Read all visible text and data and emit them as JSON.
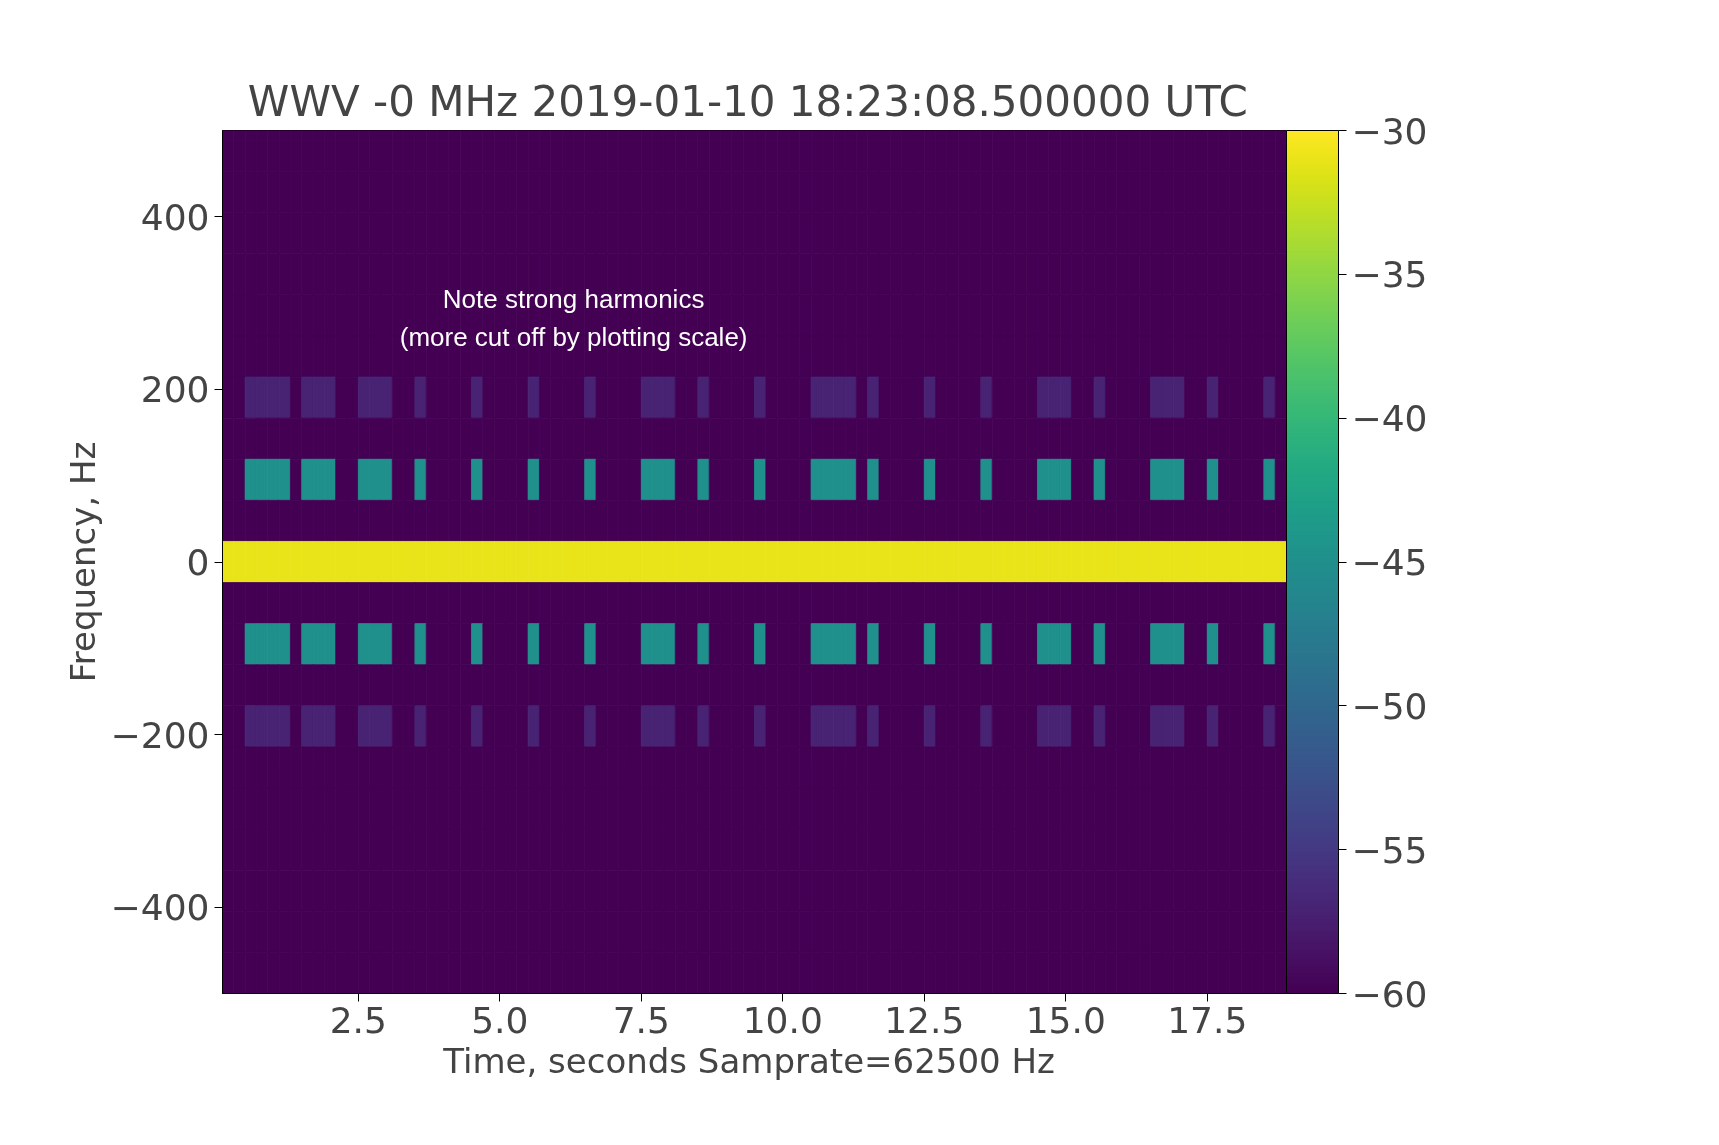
{
  "chart_data": {
    "type": "heatmap",
    "title": "WWV -0 MHz  2019-01-10 18:23:08.500000 UTC",
    "xlabel": "Time, seconds  Samprate=62500 Hz",
    "ylabel": "Frequency, Hz",
    "annotations": [
      "Note strong harmonics",
      "(more cut off by plotting scale)"
    ],
    "xlim": [
      0.1,
      18.9
    ],
    "ylim": [
      -500,
      500
    ],
    "xticks": [
      2.5,
      {
        "value": 5,
        "label": "5.0"
      },
      7.5,
      {
        "value": 10,
        "label": "10.0"
      },
      12.5,
      {
        "value": 15,
        "label": "15.0"
      },
      17.5
    ],
    "yticks": [
      {
        "value": -400,
        "label": "−400"
      },
      {
        "value": -200,
        "label": "−200"
      },
      0,
      200,
      400
    ],
    "clim": [
      -60,
      -30
    ],
    "cticks": [
      {
        "value": -60,
        "label": "−60"
      },
      {
        "value": -55,
        "label": "−55"
      },
      {
        "value": -50,
        "label": "−50"
      },
      {
        "value": -45,
        "label": "−45"
      },
      {
        "value": -40,
        "label": "−40"
      },
      {
        "value": -35,
        "label": "−35"
      },
      {
        "value": -30,
        "label": "−30"
      }
    ],
    "cells": [
      [
        -60,
        -60,
        -60,
        -60,
        -60,
        -60,
        -60,
        -60,
        -60,
        -60,
        -60,
        -60,
        -60,
        -60,
        -60,
        -60,
        -60,
        -60,
        -60,
        -60,
        -60,
        -60,
        -60,
        -60,
        -60,
        -60,
        -60,
        -60,
        -60,
        -60,
        -60,
        -60,
        -60,
        -60,
        -60,
        -60,
        -60,
        -60,
        -60,
        -60,
        -60,
        -60,
        -60,
        -60,
        -60,
        -60,
        -60,
        -60,
        -60,
        -60,
        -60,
        -60,
        -60,
        -60,
        -60,
        -60,
        -60,
        -60,
        -60,
        -60,
        -60,
        -60,
        -60,
        -60,
        -60,
        -60,
        -60,
        -60,
        -60,
        -60,
        -60,
        -60,
        -60,
        -60,
        -60,
        -60,
        -60,
        -60,
        -60,
        -60,
        -60,
        -60,
        -60,
        -60,
        -60,
        -60,
        -60,
        -60,
        -60,
        -60,
        -60,
        -60,
        -60,
        -60
      ],
      [
        -60,
        -60,
        -60,
        -60,
        -60,
        -60,
        -60,
        -60,
        -60,
        -60,
        -60,
        -60,
        -60,
        -60,
        -60,
        -60,
        -60,
        -60,
        -60,
        -60,
        -60,
        -60,
        -60,
        -60,
        -60,
        -60,
        -60,
        -60,
        -60,
        -60,
        -60,
        -60,
        -60,
        -60,
        -60,
        -60,
        -60,
        -60,
        -60,
        -60,
        -60,
        -60,
        -60,
        -60,
        -60,
        -60,
        -60,
        -60,
        -60,
        -60,
        -60,
        -60,
        -60,
        -60,
        -60,
        -60,
        -60,
        -60,
        -60,
        -60,
        -60,
        -60,
        -60,
        -60,
        -60,
        -60,
        -60,
        -60,
        -60,
        -60,
        -60,
        -60,
        -60,
        -60,
        -60,
        -60,
        -60,
        -60,
        -60,
        -60,
        -60,
        -60,
        -60,
        -60,
        -60,
        -60,
        -60,
        -60,
        -60,
        -60,
        -60,
        -60,
        -60,
        -60
      ],
      [
        -60,
        -60,
        -60,
        -60,
        -60,
        -60,
        -60,
        -60,
        -60,
        -60,
        -60,
        -60,
        -60,
        -60,
        -60,
        -60,
        -60,
        -60,
        -60,
        -60,
        -60,
        -60,
        -60,
        -60,
        -60,
        -60,
        -60,
        -60,
        -60,
        -60,
        -60,
        -60,
        -60,
        -60,
        -60,
        -60,
        -60,
        -60,
        -60,
        -60,
        -60,
        -60,
        -60,
        -60,
        -60,
        -60,
        -60,
        -60,
        -60,
        -60,
        -60,
        -60,
        -60,
        -60,
        -60,
        -60,
        -60,
        -60,
        -60,
        -60,
        -60,
        -60,
        -60,
        -60,
        -60,
        -60,
        -60,
        -60,
        -60,
        -60,
        -60,
        -60,
        -60,
        -60,
        -60,
        -60,
        -60,
        -60,
        -60,
        -60,
        -60,
        -60,
        -60,
        -60,
        -60,
        -60,
        -60,
        -60,
        -60,
        -60,
        -60,
        -60,
        -60,
        -60
      ],
      [
        -60,
        -60,
        -60,
        -60,
        -60,
        -60,
        -60,
        -60,
        -60,
        -60,
        -60,
        -60,
        -60,
        -60,
        -60,
        -60,
        -60,
        -60,
        -60,
        -60,
        -60,
        -60,
        -60,
        -60,
        -60,
        -60,
        -60,
        -60,
        -60,
        -60,
        -60,
        -60,
        -60,
        -60,
        -60,
        -60,
        -60,
        -60,
        -60,
        -60,
        -60,
        -60,
        -60,
        -60,
        -60,
        -60,
        -60,
        -60,
        -60,
        -60,
        -60,
        -60,
        -60,
        -60,
        -60,
        -60,
        -60,
        -60,
        -60,
        -60,
        -60,
        -60,
        -60,
        -60,
        -60,
        -60,
        -60,
        -60,
        -60,
        -60,
        -60,
        -60,
        -60,
        -60,
        -60,
        -60,
        -60,
        -60,
        -60,
        -60,
        -60,
        -60,
        -60,
        -60,
        -60,
        -60,
        -60,
        -60,
        -60,
        -60,
        -60,
        -60,
        -60,
        -60
      ],
      [
        -60,
        -60,
        -60,
        -60,
        -60,
        -60,
        -60,
        -60,
        -60,
        -60,
        -60,
        -60,
        -60,
        -60,
        -60,
        -60,
        -60,
        -60,
        -60,
        -60,
        -60,
        -60,
        -60,
        -60,
        -60,
        -60,
        -60,
        -60,
        -60,
        -60,
        -60,
        -60,
        -60,
        -60,
        -60,
        -60,
        -60,
        -60,
        -60,
        -60,
        -60,
        -60,
        -60,
        -60,
        -60,
        -60,
        -60,
        -60,
        -60,
        -60,
        -60,
        -60,
        -60,
        -60,
        -60,
        -60,
        -60,
        -60,
        -60,
        -60,
        -60,
        -60,
        -60,
        -60,
        -60,
        -60,
        -60,
        -60,
        -60,
        -60,
        -60,
        -60,
        -60,
        -60,
        -60,
        -60,
        -60,
        -60,
        -60,
        -60,
        -60,
        -60,
        -60,
        -60,
        -60,
        -60,
        -60,
        -60,
        -60,
        -60,
        -60,
        -60,
        -60,
        -60
      ],
      [
        -60,
        -60,
        -60,
        -60,
        -60,
        -60,
        -60,
        -60,
        -60,
        -60,
        -60,
        -60,
        -60,
        -60,
        -60,
        -60,
        -60,
        -60,
        -60,
        -60,
        -60,
        -60,
        -60,
        -60,
        -60,
        -60,
        -60,
        -60,
        -60,
        -60,
        -60,
        -60,
        -60,
        -60,
        -60,
        -60,
        -60,
        -60,
        -60,
        -60,
        -60,
        -60,
        -60,
        -60,
        -60,
        -60,
        -60,
        -60,
        -60,
        -60,
        -60,
        -60,
        -60,
        -60,
        -60,
        -60,
        -60,
        -60,
        -60,
        -60,
        -60,
        -60,
        -60,
        -60,
        -60,
        -60,
        -60,
        -60,
        -60,
        -60,
        -60,
        -60,
        -60,
        -60,
        -60,
        -60,
        -60,
        -60,
        -60,
        -60,
        -60,
        -60,
        -60,
        -60,
        -60,
        -60,
        -60,
        -60,
        -60,
        -60,
        -60,
        -60,
        -60,
        -60
      ],
      [
        -60,
        -60,
        -57,
        -57,
        -57,
        -57,
        -60,
        -57,
        -57,
        -57,
        -60,
        -60,
        -57,
        -57,
        -57,
        -60,
        -60,
        -57,
        -60,
        -60,
        -60,
        -60,
        -57,
        -60,
        -60,
        -60,
        -60,
        -57,
        -60,
        -60,
        -60,
        -60,
        -57,
        -60,
        -60,
        -60,
        -60,
        -57,
        -57,
        -57,
        -60,
        -60,
        -57,
        -60,
        -60,
        -60,
        -60,
        -57,
        -60,
        -60,
        -60,
        -60,
        -57,
        -57,
        -57,
        -57,
        -60,
        -57,
        -60,
        -60,
        -60,
        -60,
        -57,
        -60,
        -60,
        -60,
        -60,
        -57,
        -60,
        -60,
        -60,
        -60,
        -57,
        -57,
        -57,
        -60,
        -60,
        -57,
        -60,
        -60,
        -60,
        -60,
        -57,
        -57,
        -57,
        -60,
        -60,
        -57,
        -60,
        -60,
        -60,
        -60,
        -57,
        -60
      ],
      [
        -60,
        -60,
        -60,
        -60,
        -60,
        -60,
        -60,
        -60,
        -60,
        -60,
        -60,
        -60,
        -60,
        -60,
        -60,
        -60,
        -60,
        -60,
        -60,
        -60,
        -60,
        -60,
        -60,
        -60,
        -60,
        -60,
        -60,
        -60,
        -60,
        -60,
        -60,
        -60,
        -60,
        -60,
        -60,
        -60,
        -60,
        -60,
        -60,
        -60,
        -60,
        -60,
        -60,
        -60,
        -60,
        -60,
        -60,
        -60,
        -60,
        -60,
        -60,
        -60,
        -60,
        -60,
        -60,
        -60,
        -60,
        -60,
        -60,
        -60,
        -60,
        -60,
        -60,
        -60,
        -60,
        -60,
        -60,
        -60,
        -60,
        -60,
        -60,
        -60,
        -60,
        -60,
        -60,
        -60,
        -60,
        -60,
        -60,
        -60,
        -60,
        -60,
        -60,
        -60,
        -60,
        -60,
        -60,
        -60,
        -60,
        -60,
        -60,
        -60,
        -60,
        -60
      ],
      [
        -60,
        -60,
        -45,
        -45,
        -45,
        -45,
        -60,
        -45,
        -45,
        -45,
        -60,
        -60,
        -45,
        -45,
        -45,
        -60,
        -60,
        -45,
        -60,
        -60,
        -60,
        -60,
        -45,
        -60,
        -60,
        -60,
        -60,
        -45,
        -60,
        -60,
        -60,
        -60,
        -45,
        -60,
        -60,
        -60,
        -60,
        -45,
        -45,
        -45,
        -60,
        -60,
        -45,
        -60,
        -60,
        -60,
        -60,
        -45,
        -60,
        -60,
        -60,
        -60,
        -45,
        -45,
        -45,
        -45,
        -60,
        -45,
        -60,
        -60,
        -60,
        -60,
        -45,
        -60,
        -60,
        -60,
        -60,
        -45,
        -60,
        -60,
        -60,
        -60,
        -45,
        -45,
        -45,
        -60,
        -60,
        -45,
        -60,
        -60,
        -60,
        -60,
        -45,
        -45,
        -45,
        -60,
        -60,
        -45,
        -60,
        -60,
        -60,
        -60,
        -45,
        -60
      ],
      [
        -60,
        -60,
        -60,
        -60,
        -60,
        -60,
        -60,
        -60,
        -60,
        -60,
        -60,
        -60,
        -60,
        -60,
        -60,
        -60,
        -60,
        -60,
        -60,
        -60,
        -60,
        -60,
        -60,
        -60,
        -60,
        -60,
        -60,
        -60,
        -60,
        -60,
        -60,
        -60,
        -60,
        -60,
        -60,
        -60,
        -60,
        -60,
        -60,
        -60,
        -60,
        -60,
        -60,
        -60,
        -60,
        -60,
        -60,
        -60,
        -60,
        -60,
        -60,
        -60,
        -60,
        -60,
        -60,
        -60,
        -60,
        -60,
        -60,
        -60,
        -60,
        -60,
        -60,
        -60,
        -60,
        -60,
        -60,
        -60,
        -60,
        -60,
        -60,
        -60,
        -60,
        -60,
        -60,
        -60,
        -60,
        -60,
        -60,
        -60,
        -60,
        -60,
        -60,
        -60,
        -60,
        -60,
        -60,
        -60,
        -60,
        -60,
        -60,
        -60,
        -60,
        -60
      ],
      [
        -31,
        -31,
        -31,
        -31,
        -31,
        -31,
        -31,
        -31,
        -31,
        -31,
        -31,
        -31,
        -31,
        -31,
        -31,
        -31,
        -31,
        -31,
        -31,
        -31,
        -31,
        -31,
        -31,
        -31,
        -31,
        -31,
        -31,
        -31,
        -31,
        -31,
        -31,
        -31,
        -31,
        -31,
        -31,
        -31,
        -31,
        -31,
        -31,
        -31,
        -31,
        -31,
        -31,
        -31,
        -31,
        -31,
        -31,
        -31,
        -31,
        -31,
        -31,
        -31,
        -31,
        -31,
        -31,
        -31,
        -31,
        -31,
        -31,
        -31,
        -31,
        -31,
        -31,
        -31,
        -31,
        -31,
        -31,
        -31,
        -31,
        -31,
        -31,
        -31,
        -31,
        -31,
        -31,
        -31,
        -31,
        -31,
        -31,
        -31,
        -31,
        -31,
        -31,
        -31,
        -31,
        -31,
        -31,
        -31,
        -31,
        -31,
        -31,
        -31,
        -31,
        -31
      ],
      [
        -60,
        -60,
        -60,
        -60,
        -60,
        -60,
        -60,
        -60,
        -60,
        -60,
        -60,
        -60,
        -60,
        -60,
        -60,
        -60,
        -60,
        -60,
        -60,
        -60,
        -60,
        -60,
        -60,
        -60,
        -60,
        -60,
        -60,
        -60,
        -60,
        -60,
        -60,
        -60,
        -60,
        -60,
        -60,
        -60,
        -60,
        -60,
        -60,
        -60,
        -60,
        -60,
        -60,
        -60,
        -60,
        -60,
        -60,
        -60,
        -60,
        -60,
        -60,
        -60,
        -60,
        -60,
        -60,
        -60,
        -60,
        -60,
        -60,
        -60,
        -60,
        -60,
        -60,
        -60,
        -60,
        -60,
        -60,
        -60,
        -60,
        -60,
        -60,
        -60,
        -60,
        -60,
        -60,
        -60,
        -60,
        -60,
        -60,
        -60,
        -60,
        -60,
        -60,
        -60,
        -60,
        -60,
        -60,
        -60,
        -60,
        -60,
        -60,
        -60,
        -60,
        -60
      ],
      [
        -60,
        -60,
        -45,
        -45,
        -45,
        -45,
        -60,
        -45,
        -45,
        -45,
        -60,
        -60,
        -45,
        -45,
        -45,
        -60,
        -60,
        -45,
        -60,
        -60,
        -60,
        -60,
        -45,
        -60,
        -60,
        -60,
        -60,
        -45,
        -60,
        -60,
        -60,
        -60,
        -45,
        -60,
        -60,
        -60,
        -60,
        -45,
        -45,
        -45,
        -60,
        -60,
        -45,
        -60,
        -60,
        -60,
        -60,
        -45,
        -60,
        -60,
        -60,
        -60,
        -45,
        -45,
        -45,
        -45,
        -60,
        -45,
        -60,
        -60,
        -60,
        -60,
        -45,
        -60,
        -60,
        -60,
        -60,
        -45,
        -60,
        -60,
        -60,
        -60,
        -45,
        -45,
        -45,
        -60,
        -60,
        -45,
        -60,
        -60,
        -60,
        -60,
        -45,
        -45,
        -45,
        -60,
        -60,
        -45,
        -60,
        -60,
        -60,
        -60,
        -45,
        -60
      ],
      [
        -60,
        -60,
        -60,
        -60,
        -60,
        -60,
        -60,
        -60,
        -60,
        -60,
        -60,
        -60,
        -60,
        -60,
        -60,
        -60,
        -60,
        -60,
        -60,
        -60,
        -60,
        -60,
        -60,
        -60,
        -60,
        -60,
        -60,
        -60,
        -60,
        -60,
        -60,
        -60,
        -60,
        -60,
        -60,
        -60,
        -60,
        -60,
        -60,
        -60,
        -60,
        -60,
        -60,
        -60,
        -60,
        -60,
        -60,
        -60,
        -60,
        -60,
        -60,
        -60,
        -60,
        -60,
        -60,
        -60,
        -60,
        -60,
        -60,
        -60,
        -60,
        -60,
        -60,
        -60,
        -60,
        -60,
        -60,
        -60,
        -60,
        -60,
        -60,
        -60,
        -60,
        -60,
        -60,
        -60,
        -60,
        -60,
        -60,
        -60,
        -60,
        -60,
        -60,
        -60,
        -60,
        -60,
        -60,
        -60,
        -60,
        -60,
        -60,
        -60,
        -60,
        -60
      ],
      [
        -60,
        -60,
        -57,
        -57,
        -57,
        -57,
        -60,
        -57,
        -57,
        -57,
        -60,
        -60,
        -57,
        -57,
        -57,
        -60,
        -60,
        -57,
        -60,
        -60,
        -60,
        -60,
        -57,
        -60,
        -60,
        -60,
        -60,
        -57,
        -60,
        -60,
        -60,
        -60,
        -57,
        -60,
        -60,
        -60,
        -60,
        -57,
        -57,
        -57,
        -60,
        -60,
        -57,
        -60,
        -60,
        -60,
        -60,
        -57,
        -60,
        -60,
        -60,
        -60,
        -57,
        -57,
        -57,
        -57,
        -60,
        -57,
        -60,
        -60,
        -60,
        -60,
        -57,
        -60,
        -60,
        -60,
        -60,
        -57,
        -60,
        -60,
        -60,
        -60,
        -57,
        -57,
        -57,
        -60,
        -60,
        -57,
        -60,
        -60,
        -60,
        -60,
        -57,
        -57,
        -57,
        -60,
        -60,
        -57,
        -60,
        -60,
        -60,
        -60,
        -57,
        -60
      ],
      [
        -60,
        -60,
        -60,
        -60,
        -60,
        -60,
        -60,
        -60,
        -60,
        -60,
        -60,
        -60,
        -60,
        -60,
        -60,
        -60,
        -60,
        -60,
        -60,
        -60,
        -60,
        -60,
        -60,
        -60,
        -60,
        -60,
        -60,
        -60,
        -60,
        -60,
        -60,
        -60,
        -60,
        -60,
        -60,
        -60,
        -60,
        -60,
        -60,
        -60,
        -60,
        -60,
        -60,
        -60,
        -60,
        -60,
        -60,
        -60,
        -60,
        -60,
        -60,
        -60,
        -60,
        -60,
        -60,
        -60,
        -60,
        -60,
        -60,
        -60,
        -60,
        -60,
        -60,
        -60,
        -60,
        -60,
        -60,
        -60,
        -60,
        -60,
        -60,
        -60,
        -60,
        -60,
        -60,
        -60,
        -60,
        -60,
        -60,
        -60,
        -60,
        -60,
        -60,
        -60,
        -60,
        -60,
        -60,
        -60,
        -60,
        -60,
        -60,
        -60,
        -60,
        -60
      ],
      [
        -60,
        -60,
        -60,
        -60,
        -60,
        -60,
        -60,
        -60,
        -60,
        -60,
        -60,
        -60,
        -60,
        -60,
        -60,
        -60,
        -60,
        -60,
        -60,
        -60,
        -60,
        -60,
        -60,
        -60,
        -60,
        -60,
        -60,
        -60,
        -60,
        -60,
        -60,
        -60,
        -60,
        -60,
        -60,
        -60,
        -60,
        -60,
        -60,
        -60,
        -60,
        -60,
        -60,
        -60,
        -60,
        -60,
        -60,
        -60,
        -60,
        -60,
        -60,
        -60,
        -60,
        -60,
        -60,
        -60,
        -60,
        -60,
        -60,
        -60,
        -60,
        -60,
        -60,
        -60,
        -60,
        -60,
        -60,
        -60,
        -60,
        -60,
        -60,
        -60,
        -60,
        -60,
        -60,
        -60,
        -60,
        -60,
        -60,
        -60,
        -60,
        -60,
        -60,
        -60,
        -60,
        -60,
        -60,
        -60,
        -60,
        -60,
        -60,
        -60,
        -60,
        -60
      ],
      [
        -60,
        -60,
        -60,
        -60,
        -60,
        -60,
        -60,
        -60,
        -60,
        -60,
        -60,
        -60,
        -60,
        -60,
        -60,
        -60,
        -60,
        -60,
        -60,
        -60,
        -60,
        -60,
        -60,
        -60,
        -60,
        -60,
        -60,
        -60,
        -60,
        -60,
        -60,
        -60,
        -60,
        -60,
        -60,
        -60,
        -60,
        -60,
        -60,
        -60,
        -60,
        -60,
        -60,
        -60,
        -60,
        -60,
        -60,
        -60,
        -60,
        -60,
        -60,
        -60,
        -60,
        -60,
        -60,
        -60,
        -60,
        -60,
        -60,
        -60,
        -60,
        -60,
        -60,
        -60,
        -60,
        -60,
        -60,
        -60,
        -60,
        -60,
        -60,
        -60,
        -60,
        -60,
        -60,
        -60,
        -60,
        -60,
        -60,
        -60,
        -60,
        -60,
        -60,
        -60,
        -60,
        -60,
        -60,
        -60,
        -60,
        -60,
        -60,
        -60,
        -60,
        -60
      ],
      [
        -60,
        -60,
        -60,
        -60,
        -60,
        -60,
        -60,
        -60,
        -60,
        -60,
        -60,
        -60,
        -60,
        -60,
        -60,
        -60,
        -60,
        -60,
        -60,
        -60,
        -60,
        -60,
        -60,
        -60,
        -60,
        -60,
        -60,
        -60,
        -60,
        -60,
        -60,
        -60,
        -60,
        -60,
        -60,
        -60,
        -60,
        -60,
        -60,
        -60,
        -60,
        -60,
        -60,
        -60,
        -60,
        -60,
        -60,
        -60,
        -60,
        -60,
        -60,
        -60,
        -60,
        -60,
        -60,
        -60,
        -60,
        -60,
        -60,
        -60,
        -60,
        -60,
        -60,
        -60,
        -60,
        -60,
        -60,
        -60,
        -60,
        -60,
        -60,
        -60,
        -60,
        -60,
        -60,
        -60,
        -60,
        -60,
        -60,
        -60,
        -60,
        -60,
        -60,
        -60,
        -60,
        -60,
        -60,
        -60,
        -60,
        -60,
        -60,
        -60,
        -60,
        -60
      ],
      [
        -60,
        -60,
        -60,
        -60,
        -60,
        -60,
        -60,
        -60,
        -60,
        -60,
        -60,
        -60,
        -60,
        -60,
        -60,
        -60,
        -60,
        -60,
        -60,
        -60,
        -60,
        -60,
        -60,
        -60,
        -60,
        -60,
        -60,
        -60,
        -60,
        -60,
        -60,
        -60,
        -60,
        -60,
        -60,
        -60,
        -60,
        -60,
        -60,
        -60,
        -60,
        -60,
        -60,
        -60,
        -60,
        -60,
        -60,
        -60,
        -60,
        -60,
        -60,
        -60,
        -60,
        -60,
        -60,
        -60,
        -60,
        -60,
        -60,
        -60,
        -60,
        -60,
        -60,
        -60,
        -60,
        -60,
        -60,
        -60,
        -60,
        -60,
        -60,
        -60,
        -60,
        -60,
        -60,
        -60,
        -60,
        -60,
        -60,
        -60,
        -60,
        -60,
        -60,
        -60,
        -60,
        -60,
        -60,
        -60,
        -60,
        -60,
        -60,
        -60,
        -60,
        -60
      ],
      [
        -60,
        -60,
        -60,
        -60,
        -60,
        -60,
        -60,
        -60,
        -60,
        -60,
        -60,
        -60,
        -60,
        -60,
        -60,
        -60,
        -60,
        -60,
        -60,
        -60,
        -60,
        -60,
        -60,
        -60,
        -60,
        -60,
        -60,
        -60,
        -60,
        -60,
        -60,
        -60,
        -60,
        -60,
        -60,
        -60,
        -60,
        -60,
        -60,
        -60,
        -60,
        -60,
        -60,
        -60,
        -60,
        -60,
        -60,
        -60,
        -60,
        -60,
        -60,
        -60,
        -60,
        -60,
        -60,
        -60,
        -60,
        -60,
        -60,
        -60,
        -60,
        -60,
        -60,
        -60,
        -60,
        -60,
        -60,
        -60,
        -60,
        -60,
        -60,
        -60,
        -60,
        -60,
        -60,
        -60,
        -60,
        -60,
        -60,
        -60,
        -60,
        -60,
        -60,
        -60,
        -60,
        -60,
        -60,
        -60,
        -60,
        -60,
        -60,
        -60,
        -60,
        -60
      ]
    ]
  }
}
